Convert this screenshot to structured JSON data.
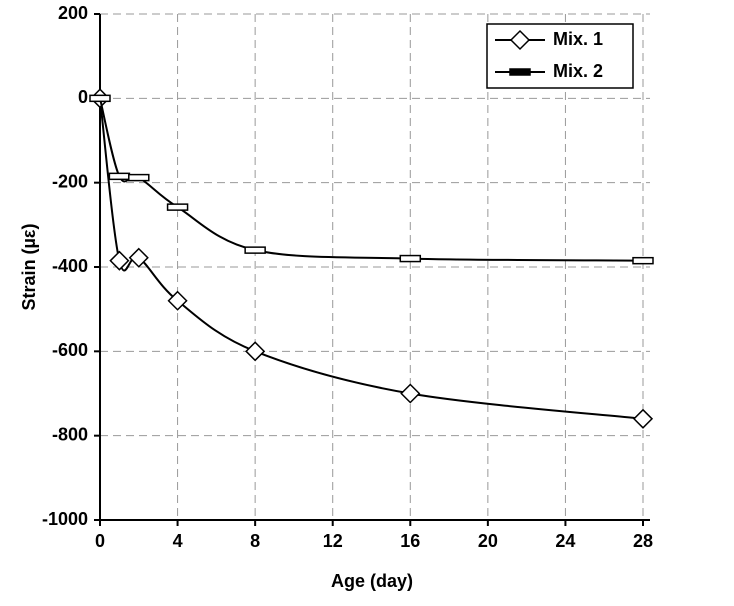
{
  "chart_data": {
    "type": "line",
    "x_label": "Age (day)",
    "y_label": "Strain (µε)",
    "xlim": [
      0,
      28
    ],
    "xticks": [
      0,
      4,
      8,
      12,
      16,
      20,
      24,
      28
    ],
    "ylim": [
      -1000,
      200
    ],
    "yticks": [
      200,
      0,
      -200,
      -400,
      -600,
      -800,
      -1000
    ],
    "grid": true,
    "legend": "upper right",
    "series": [
      {
        "name": "Mix. 1",
        "color": "#000000",
        "marker": "diamond",
        "x": [
          0,
          1,
          2,
          4,
          8,
          16,
          28
        ],
        "values": [
          0,
          -385,
          -378,
          -480,
          -600,
          -700,
          -760
        ]
      },
      {
        "name": "Mix. 2",
        "color": "#000000",
        "marker": "rect",
        "x": [
          0,
          1,
          2,
          4,
          8,
          16,
          28
        ],
        "values": [
          0,
          -185,
          -188,
          -258,
          -360,
          -380,
          -385
        ]
      }
    ]
  }
}
